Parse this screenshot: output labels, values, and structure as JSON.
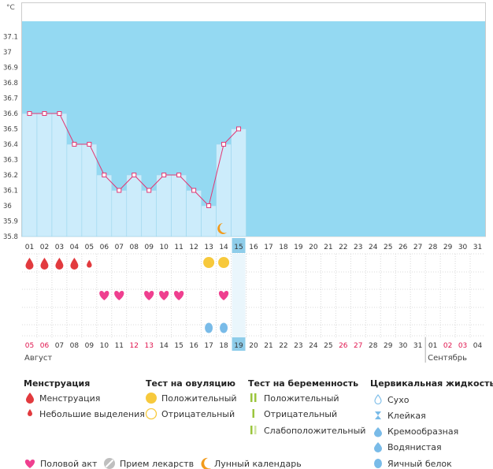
{
  "colors": {
    "plot_bg": "#94d9f2",
    "bar_fill": "#ccecfb",
    "bar_edge": "#9cd6ee",
    "line": "#e23673",
    "point_fill": "#ffffff",
    "menstruation": "#e23a3e",
    "heart": "#ef3f8f",
    "ovulation_positive": "#f7c93c",
    "pregnancy": "#9bc53d",
    "fluid": "#79bbe8",
    "moon": "#f29b1c",
    "grid": "#cfcfcf",
    "highlight": "#8ecdea",
    "red_date": "#e0154e"
  },
  "chart_data": {
    "type": "line",
    "y_unit": "°C",
    "ylim": [
      35.8,
      37.2
    ],
    "y_ticks": [
      "35.8",
      "35.9",
      "36",
      "36.1",
      "36.2",
      "36.3",
      "36.4",
      "36.5",
      "36.6",
      "36.7",
      "36.8",
      "36.9",
      "37",
      "37.1"
    ],
    "cycle_days": [
      "01",
      "02",
      "03",
      "04",
      "05",
      "06",
      "07",
      "08",
      "09",
      "10",
      "11",
      "12",
      "13",
      "14",
      "15",
      "16",
      "17",
      "18",
      "19",
      "20",
      "21",
      "22",
      "23",
      "24",
      "25",
      "26",
      "27",
      "28",
      "29",
      "30",
      "31"
    ],
    "current_day_index": 14,
    "series": [
      {
        "values": [
          36.6,
          36.6,
          36.6,
          36.4,
          36.4,
          36.2,
          36.1,
          36.2,
          36.1,
          36.2,
          36.2,
          36.1,
          36.0,
          36.4,
          36.5
        ]
      }
    ],
    "blue_area_from_day_index": 15,
    "moon_day_index": 13
  },
  "rows": {
    "menstruation": [
      {
        "day": 0,
        "size": "big"
      },
      {
        "day": 1,
        "size": "big"
      },
      {
        "day": 2,
        "size": "big"
      },
      {
        "day": 3,
        "size": "big"
      },
      {
        "day": 4,
        "size": "small"
      }
    ],
    "ovulation_positive_days": [
      12,
      13
    ],
    "intercourse_days": [
      5,
      6,
      8,
      9,
      10,
      13
    ],
    "fluid_days": [
      12,
      13
    ]
  },
  "dates": {
    "labels": [
      "05",
      "06",
      "07",
      "08",
      "09",
      "10",
      "11",
      "12",
      "13",
      "14",
      "15",
      "16",
      "17",
      "18",
      "19",
      "20",
      "21",
      "22",
      "23",
      "24",
      "25",
      "26",
      "27",
      "28",
      "29",
      "30",
      "31",
      "01",
      "02",
      "03",
      "04"
    ],
    "red_indexes": [
      0,
      1,
      7,
      8,
      21,
      22,
      28,
      29
    ],
    "current_index": 14,
    "month_break_index": 27,
    "month_left": "Август",
    "month_right": "Сентябрь"
  },
  "legend": {
    "menstruation": {
      "title": "Менструация",
      "items": [
        "Менструация",
        "Небольшие выделения"
      ]
    },
    "ovulation": {
      "title": "Тест на овуляцию",
      "items": [
        "Положительный",
        "Отрицательный"
      ]
    },
    "pregnancy": {
      "title": "Тест на беременность",
      "items": [
        "Положительный",
        "Отрицательный",
        "Слабоположительный"
      ]
    },
    "cervical": {
      "title": "Цервикальная жидкость",
      "items": [
        "Сухо",
        "Клейкая",
        "Кремообразная",
        "Водянистая",
        "Яичный белок"
      ]
    },
    "bottom": [
      {
        "icon": "heart-icon",
        "label": "Половой акт"
      },
      {
        "icon": "pill-icon",
        "label": "Прием лекарств"
      },
      {
        "icon": "moon-icon",
        "label": "Лунный календарь"
      }
    ]
  }
}
